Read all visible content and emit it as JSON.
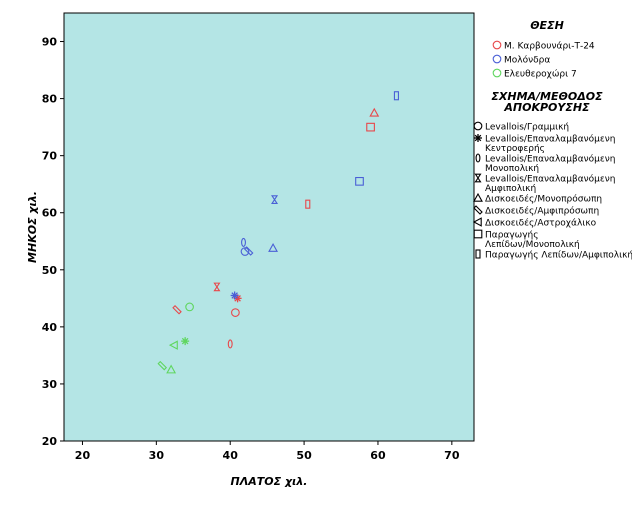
{
  "chart_data": {
    "type": "scatter",
    "title": "",
    "xlabel": "ΠΛΑΤΟΣ χιλ.",
    "ylabel": "ΜΗΚΟΣ χιλ.",
    "xlim": [
      17.5,
      73
    ],
    "ylim": [
      20,
      95
    ],
    "xticks": [
      "20",
      "30",
      "40",
      "50",
      "60",
      "70"
    ],
    "yticks": [
      "20",
      "30",
      "40",
      "50",
      "60",
      "70",
      "80",
      "90"
    ],
    "grid": false,
    "background": "#b4e5e5",
    "legend_position": "right",
    "color_legend": {
      "title": "ΘΕΣΗ",
      "items": [
        {
          "label": "Μ. Καρβουνάρι-Τ-24",
          "color": "#e8474a"
        },
        {
          "label": "Μολόνδρα",
          "color": "#4a5fd6"
        },
        {
          "label": "Ελευθεροχώρι 7",
          "color": "#5fd65f"
        }
      ]
    },
    "shape_legend": {
      "title_lines": [
        "ΣΧΗΜΑ/ΜΕΘΟΔΟΣ",
        "ΑΠΟΚΡΟΥΣΗΣ"
      ],
      "items": [
        {
          "shape": "circle",
          "lines": [
            "Levallois/Γραμμική"
          ]
        },
        {
          "shape": "star",
          "lines": [
            "Levallois/Επαναλαμβανόμενη",
            "Κεντροφερής"
          ]
        },
        {
          "shape": "tall-ellipse",
          "lines": [
            "Levallois/Επαναλαμβανόμενη",
            "Μονοπολική"
          ]
        },
        {
          "shape": "hourglass",
          "lines": [
            "Levallois/Επαναλαμβανόμενη",
            "Αμφιπολική"
          ]
        },
        {
          "shape": "triangle",
          "lines": [
            "Δισκοειδές/Μονοπρόσωπη"
          ]
        },
        {
          "shape": "diamond",
          "lines": [
            "Δισκοειδές/Αμφιπρόσωπη"
          ]
        },
        {
          "shape": "triangle-left",
          "lines": [
            "Δισκοειδές/Αστροχάλικο"
          ]
        },
        {
          "shape": "square",
          "lines": [
            "Παραγωγής",
            "Λεπίδων/Μονοπολική"
          ]
        },
        {
          "shape": "tall-rect",
          "lines": [
            "Παραγωγής Λεπίδων/Αμφιπολική"
          ]
        }
      ]
    },
    "points": [
      {
        "x": 59.5,
        "y": 77.5,
        "site": 0,
        "shape": "triangle"
      },
      {
        "x": 59.0,
        "y": 75.0,
        "site": 0,
        "shape": "square"
      },
      {
        "x": 50.5,
        "y": 61.5,
        "site": 0,
        "shape": "tall-rect"
      },
      {
        "x": 38.2,
        "y": 47.0,
        "site": 0,
        "shape": "hourglass"
      },
      {
        "x": 41.0,
        "y": 45.0,
        "site": 0,
        "shape": "star"
      },
      {
        "x": 32.8,
        "y": 43.0,
        "site": 0,
        "shape": "diamond"
      },
      {
        "x": 40.7,
        "y": 42.5,
        "site": 0,
        "shape": "circle"
      },
      {
        "x": 40.0,
        "y": 37.0,
        "site": 0,
        "shape": "tall-ellipse"
      },
      {
        "x": 62.5,
        "y": 80.5,
        "site": 1,
        "shape": "tall-rect"
      },
      {
        "x": 57.5,
        "y": 65.5,
        "site": 1,
        "shape": "square"
      },
      {
        "x": 46.0,
        "y": 62.3,
        "site": 1,
        "shape": "hourglass"
      },
      {
        "x": 41.8,
        "y": 54.8,
        "site": 1,
        "shape": "tall-ellipse"
      },
      {
        "x": 42.5,
        "y": 53.3,
        "site": 1,
        "shape": "diamond"
      },
      {
        "x": 42.0,
        "y": 53.2,
        "site": 1,
        "shape": "circle"
      },
      {
        "x": 45.8,
        "y": 53.8,
        "site": 1,
        "shape": "triangle"
      },
      {
        "x": 40.6,
        "y": 45.5,
        "site": 1,
        "shape": "star"
      },
      {
        "x": 34.5,
        "y": 43.5,
        "site": 2,
        "shape": "circle"
      },
      {
        "x": 33.9,
        "y": 37.5,
        "site": 2,
        "shape": "star"
      },
      {
        "x": 32.4,
        "y": 36.8,
        "site": 2,
        "shape": "triangle-left"
      },
      {
        "x": 30.8,
        "y": 33.2,
        "site": 2,
        "shape": "diamond"
      },
      {
        "x": 32.0,
        "y": 32.5,
        "site": 2,
        "shape": "triangle"
      }
    ]
  }
}
